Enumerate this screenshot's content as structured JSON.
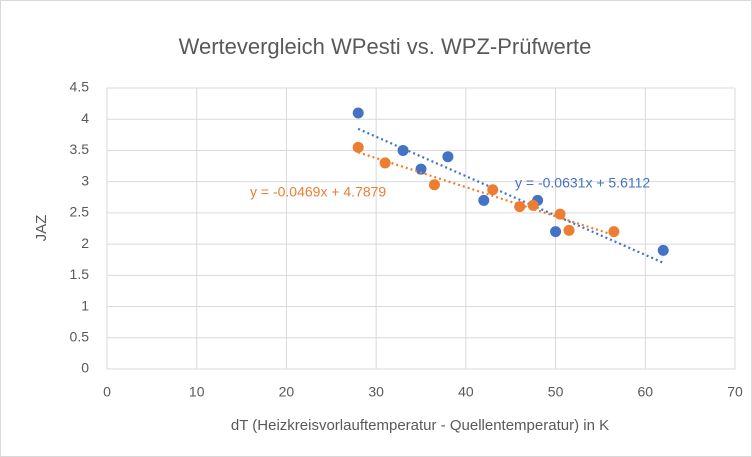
{
  "chart_data": {
    "type": "scatter",
    "title": "Wertevergleich WPesti vs. WPZ-Prüfwerte",
    "xlabel": "dT (Heizkreisvorlauftemperatur - Quellentemperatur) in K",
    "ylabel": "JAZ",
    "xlim": [
      0,
      70
    ],
    "xticks": [
      0,
      10,
      20,
      30,
      40,
      50,
      60,
      70
    ],
    "ylim": [
      0,
      4.5
    ],
    "yticks": [
      0,
      0.5,
      1,
      1.5,
      2,
      2.5,
      3,
      3.5,
      4,
      4.5
    ],
    "grid": true,
    "series": [
      {
        "color": "#4472c4",
        "x": [
          28,
          33,
          35,
          38,
          42,
          48,
          50,
          62
        ],
        "values": [
          4.1,
          3.5,
          3.2,
          3.4,
          2.7,
          2.7,
          2.2,
          1.9
        ],
        "trendline": "y = -0.0631x + 5.6112"
      },
      {
        "color": "#ed7d31",
        "x": [
          28,
          31,
          36.5,
          43,
          46,
          47.5,
          50.5,
          51.5,
          56.5
        ],
        "values": [
          3.55,
          3.3,
          2.95,
          2.87,
          2.6,
          2.62,
          2.48,
          2.22,
          2.2
        ],
        "trendline": "y = -0.0469x + 4.7879"
      }
    ]
  }
}
